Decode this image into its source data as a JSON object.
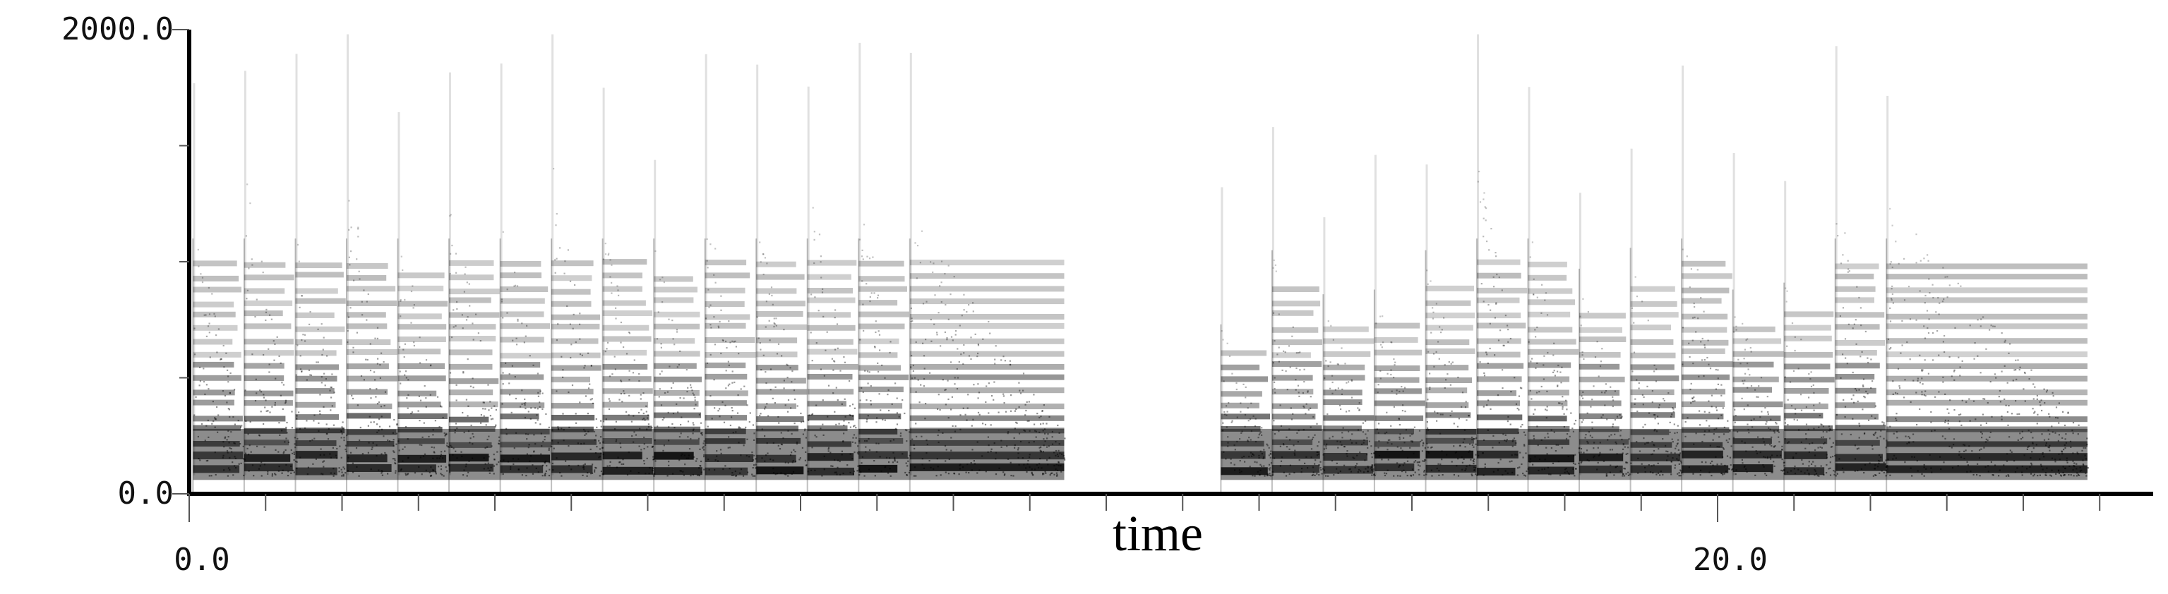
{
  "chart_data": {
    "type": "heatmap",
    "title": "",
    "xlabel": "time",
    "ylabel": "",
    "xlim": [
      0,
      25.7
    ],
    "ylim": [
      0,
      2000
    ],
    "x_ticks": [
      {
        "value": 0,
        "label": "0.0"
      },
      {
        "value": 20,
        "label": "20.0"
      }
    ],
    "y_ticks": [
      {
        "value": 0,
        "label": "0.0"
      },
      {
        "value": 2000,
        "label": "2000.0"
      }
    ],
    "x_minor_step": 1,
    "y_minor_step": 500,
    "colormap": [
      "#ffffff",
      "#000000"
    ],
    "harmonics_hz": [
      110,
      165,
      220,
      275,
      330,
      385,
      440,
      495,
      550,
      605,
      660,
      715,
      770,
      825,
      880,
      935,
      990
    ],
    "note_onsets": [
      {
        "t": 0.05,
        "d": 0.67,
        "max_hz": 1230,
        "sustain": 0
      },
      {
        "t": 0.72,
        "d": 0.67,
        "max_hz": 1400,
        "sustain": 0
      },
      {
        "t": 1.39,
        "d": 0.67,
        "max_hz": 1230,
        "sustain": 0
      },
      {
        "t": 2.06,
        "d": 0.67,
        "max_hz": 1430,
        "sustain": 0
      },
      {
        "t": 2.73,
        "d": 0.67,
        "max_hz": 1150,
        "sustain": 0
      },
      {
        "t": 3.4,
        "d": 0.67,
        "max_hz": 1330,
        "sustain": 0
      },
      {
        "t": 4.07,
        "d": 0.67,
        "max_hz": 1250,
        "sustain": 0
      },
      {
        "t": 4.74,
        "d": 0.67,
        "max_hz": 1480,
        "sustain": 0
      },
      {
        "t": 5.41,
        "d": 0.67,
        "max_hz": 1180,
        "sustain": 0
      },
      {
        "t": 6.08,
        "d": 0.67,
        "max_hz": 1120,
        "sustain": 0
      },
      {
        "t": 6.75,
        "d": 0.67,
        "max_hz": 1250,
        "sustain": 0
      },
      {
        "t": 7.42,
        "d": 0.67,
        "max_hz": 1230,
        "sustain": 0
      },
      {
        "t": 8.09,
        "d": 0.67,
        "max_hz": 1380,
        "sustain": 0
      },
      {
        "t": 8.76,
        "d": 0.67,
        "max_hz": 1300,
        "sustain": 0
      },
      {
        "t": 9.43,
        "d": 2.02,
        "max_hz": 1250,
        "sustain": 1
      },
      {
        "t": 13.5,
        "d": 0.67,
        "max_hz": 730,
        "sustain": 0
      },
      {
        "t": 14.17,
        "d": 0.67,
        "max_hz": 1050,
        "sustain": 0
      },
      {
        "t": 14.84,
        "d": 0.67,
        "max_hz": 860,
        "sustain": 0
      },
      {
        "t": 15.51,
        "d": 0.67,
        "max_hz": 880,
        "sustain": 0
      },
      {
        "t": 16.18,
        "d": 0.67,
        "max_hz": 1050,
        "sustain": 0
      },
      {
        "t": 16.85,
        "d": 0.67,
        "max_hz": 1480,
        "sustain": 0
      },
      {
        "t": 17.52,
        "d": 0.67,
        "max_hz": 1200,
        "sustain": 0
      },
      {
        "t": 18.19,
        "d": 0.67,
        "max_hz": 970,
        "sustain": 0
      },
      {
        "t": 18.86,
        "d": 0.67,
        "max_hz": 1060,
        "sustain": 0
      },
      {
        "t": 19.53,
        "d": 0.67,
        "max_hz": 1270,
        "sustain": 0
      },
      {
        "t": 20.2,
        "d": 0.67,
        "max_hz": 880,
        "sustain": 0
      },
      {
        "t": 20.87,
        "d": 0.67,
        "max_hz": 910,
        "sustain": 0
      },
      {
        "t": 21.54,
        "d": 0.67,
        "max_hz": 1340,
        "sustain": 0
      },
      {
        "t": 22.21,
        "d": 2.63,
        "max_hz": 1280,
        "sustain": 1
      }
    ]
  }
}
